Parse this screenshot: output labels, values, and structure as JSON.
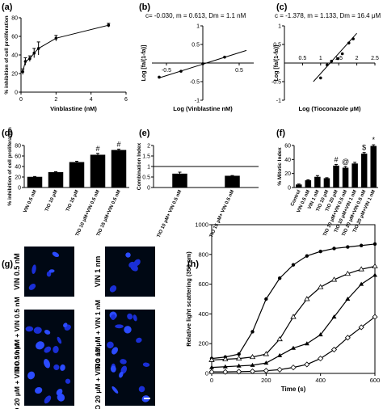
{
  "figure": {
    "panels": {
      "a": {
        "letter": "(a)"
      },
      "b": {
        "letter": "(b)",
        "equation": "c= -0.030, m = 0.613, Dm = 1.1 nM"
      },
      "c": {
        "letter": "(c)",
        "equation": "c = -1.378, m = 1.133, Dm = 16.4 μM"
      },
      "d": {
        "letter": "(d)"
      },
      "e": {
        "letter": "(e)"
      },
      "f": {
        "letter": "(f)"
      },
      "g": {
        "letter": "(g)",
        "labels": [
          "VIN 0.5 nM",
          "VIN 1 nm",
          "TIO 10 μM + VIN 0.5 nM",
          "TIO 10 μM + VIN 1 nM",
          "TIO 20 μM + VIN 0.5 nM",
          "TIO 20 μM + VIN 1 nM"
        ]
      },
      "h": {
        "letter": "(h)"
      }
    }
  },
  "chart_data": [
    {
      "id": "a",
      "type": "line",
      "xlabel": "Vinblastine (nM)",
      "ylabel": "% inhibition of cell proliferation",
      "xlim": [
        0,
        6
      ],
      "ylim": [
        0,
        80
      ],
      "xticks": [
        0,
        2,
        4,
        6
      ],
      "yticks": [
        0,
        20,
        40,
        60,
        80
      ],
      "x": [
        0.1,
        0.25,
        0.5,
        0.75,
        1,
        2,
        5
      ],
      "y": [
        22,
        33,
        36,
        42,
        47,
        58,
        72
      ],
      "err": [
        3,
        4,
        3,
        5,
        7,
        3,
        2
      ]
    },
    {
      "id": "b",
      "type": "scatter",
      "xlabel": "Log (Vinblastine nM)",
      "ylabel": "Log [fa/(1-fa)]",
      "xlim": [
        -0.7,
        0.7
      ],
      "ylim": [
        -1,
        1
      ],
      "xticks": [
        -0.5,
        0.5
      ],
      "yticks": [
        -1,
        -0.5,
        0.5,
        1
      ],
      "x": [
        -0.6,
        -0.3,
        0,
        0.3
      ],
      "y": [
        -0.38,
        -0.22,
        -0.02,
        0.16
      ],
      "fit": {
        "x": [
          -0.6,
          0.6
        ],
        "y": [
          -0.4,
          0.34
        ]
      }
    },
    {
      "id": "c",
      "type": "scatter",
      "xlabel": "Log (Tioconazole μM)",
      "ylabel": "Log [fa/(1-fa)]",
      "xlim": [
        0,
        2.5
      ],
      "ylim": [
        -1.0,
        1.0
      ],
      "xticks": [
        0.5,
        1.0,
        1.5,
        2.0,
        2.5
      ],
      "yticks": [
        -1.0,
        -0.5,
        0.5,
        1.0
      ],
      "x": [
        1.0,
        1.18,
        1.3,
        1.48,
        1.6,
        1.78,
        1.9
      ],
      "y": [
        -0.4,
        -0.05,
        0.05,
        0.12,
        0.25,
        0.54,
        0.65
      ],
      "fit": {
        "x": [
          0.8,
          2.0
        ],
        "y": [
          -0.5,
          0.8
        ]
      }
    },
    {
      "id": "d",
      "type": "bar",
      "ylabel": "% inhibition of cell proliferation",
      "ylim": [
        0,
        80
      ],
      "yticks": [
        0,
        20,
        40,
        60,
        80
      ],
      "categories": [
        "VIN 0.5 nM",
        "TIO 10 μM",
        "TIO 15 μM",
        "TIO 10 μM+VIN 0.5 nM",
        "TIO 15 μM+VIN 0.5 nM"
      ],
      "values": [
        20,
        29,
        48,
        62,
        71
      ],
      "err": [
        1,
        1,
        2,
        3,
        2
      ],
      "annotations": [
        "",
        "",
        "",
        "#",
        "#"
      ]
    },
    {
      "id": "e",
      "type": "bar",
      "ylabel": "Combination Index",
      "ylim": [
        0,
        2.0
      ],
      "yticks": [
        0.0,
        0.5,
        1.0,
        1.5,
        2.0
      ],
      "refline": 1.0,
      "categories": [
        "TIO 10 μM+ VIN 0.5 nM",
        "TIO 15 μM+ VIN 0.5 nM"
      ],
      "values": [
        0.65,
        0.55
      ],
      "err": [
        0.08,
        0.02
      ]
    },
    {
      "id": "f",
      "type": "bar",
      "ylabel": "% Mitotic Index",
      "ylim": [
        0,
        60
      ],
      "yticks": [
        0,
        20,
        40,
        60
      ],
      "categories": [
        "Control",
        "VIN 0.5 nM",
        "VIN 1 nM",
        "TIO 10 μM",
        "TIO 20 μM",
        "TIO 10 μM+VIN 0.5 nM",
        "TIO 10 μM+VIN 1 nM",
        "TIO 20 μM+VIN 0.5 nM",
        "TIO 20 μM+VIN 1 nM"
      ],
      "values": [
        4,
        10,
        15,
        13,
        31,
        28,
        34,
        48,
        59
      ],
      "err": [
        1,
        1,
        2,
        1,
        2,
        2,
        2,
        2,
        2
      ],
      "annotations": [
        "",
        "",
        "",
        "",
        "#",
        "@",
        "",
        "$",
        "*"
      ]
    },
    {
      "id": "h",
      "type": "line",
      "xlabel": "Time (s)",
      "ylabel": "Relative light scattering (350 nm)",
      "xlim": [
        0,
        600
      ],
      "ylim": [
        0,
        1000
      ],
      "xticks": [
        0,
        200,
        400,
        600
      ],
      "yticks": [
        0,
        200,
        400,
        600,
        800,
        1000
      ],
      "series": [
        {
          "marker": "filled-circle",
          "x": [
            0,
            50,
            100,
            150,
            200,
            250,
            300,
            350,
            400,
            450,
            500,
            550,
            600
          ],
          "y": [
            100,
            110,
            130,
            280,
            500,
            640,
            730,
            790,
            820,
            840,
            850,
            860,
            870
          ]
        },
        {
          "marker": "open-triangle",
          "x": [
            0,
            50,
            100,
            150,
            200,
            250,
            300,
            350,
            400,
            450,
            500,
            550,
            600
          ],
          "y": [
            90,
            95,
            100,
            110,
            130,
            230,
            380,
            500,
            580,
            630,
            670,
            700,
            720
          ]
        },
        {
          "marker": "filled-triangle",
          "x": [
            0,
            50,
            100,
            150,
            200,
            250,
            300,
            350,
            400,
            450,
            500,
            550,
            600
          ],
          "y": [
            40,
            45,
            50,
            55,
            70,
            120,
            170,
            200,
            260,
            380,
            500,
            600,
            660
          ]
        },
        {
          "marker": "open-diamond",
          "x": [
            0,
            50,
            100,
            150,
            200,
            250,
            300,
            350,
            400,
            450,
            500,
            550,
            600
          ],
          "y": [
            10,
            10,
            12,
            14,
            18,
            25,
            40,
            60,
            100,
            160,
            240,
            310,
            380
          ]
        }
      ]
    }
  ]
}
